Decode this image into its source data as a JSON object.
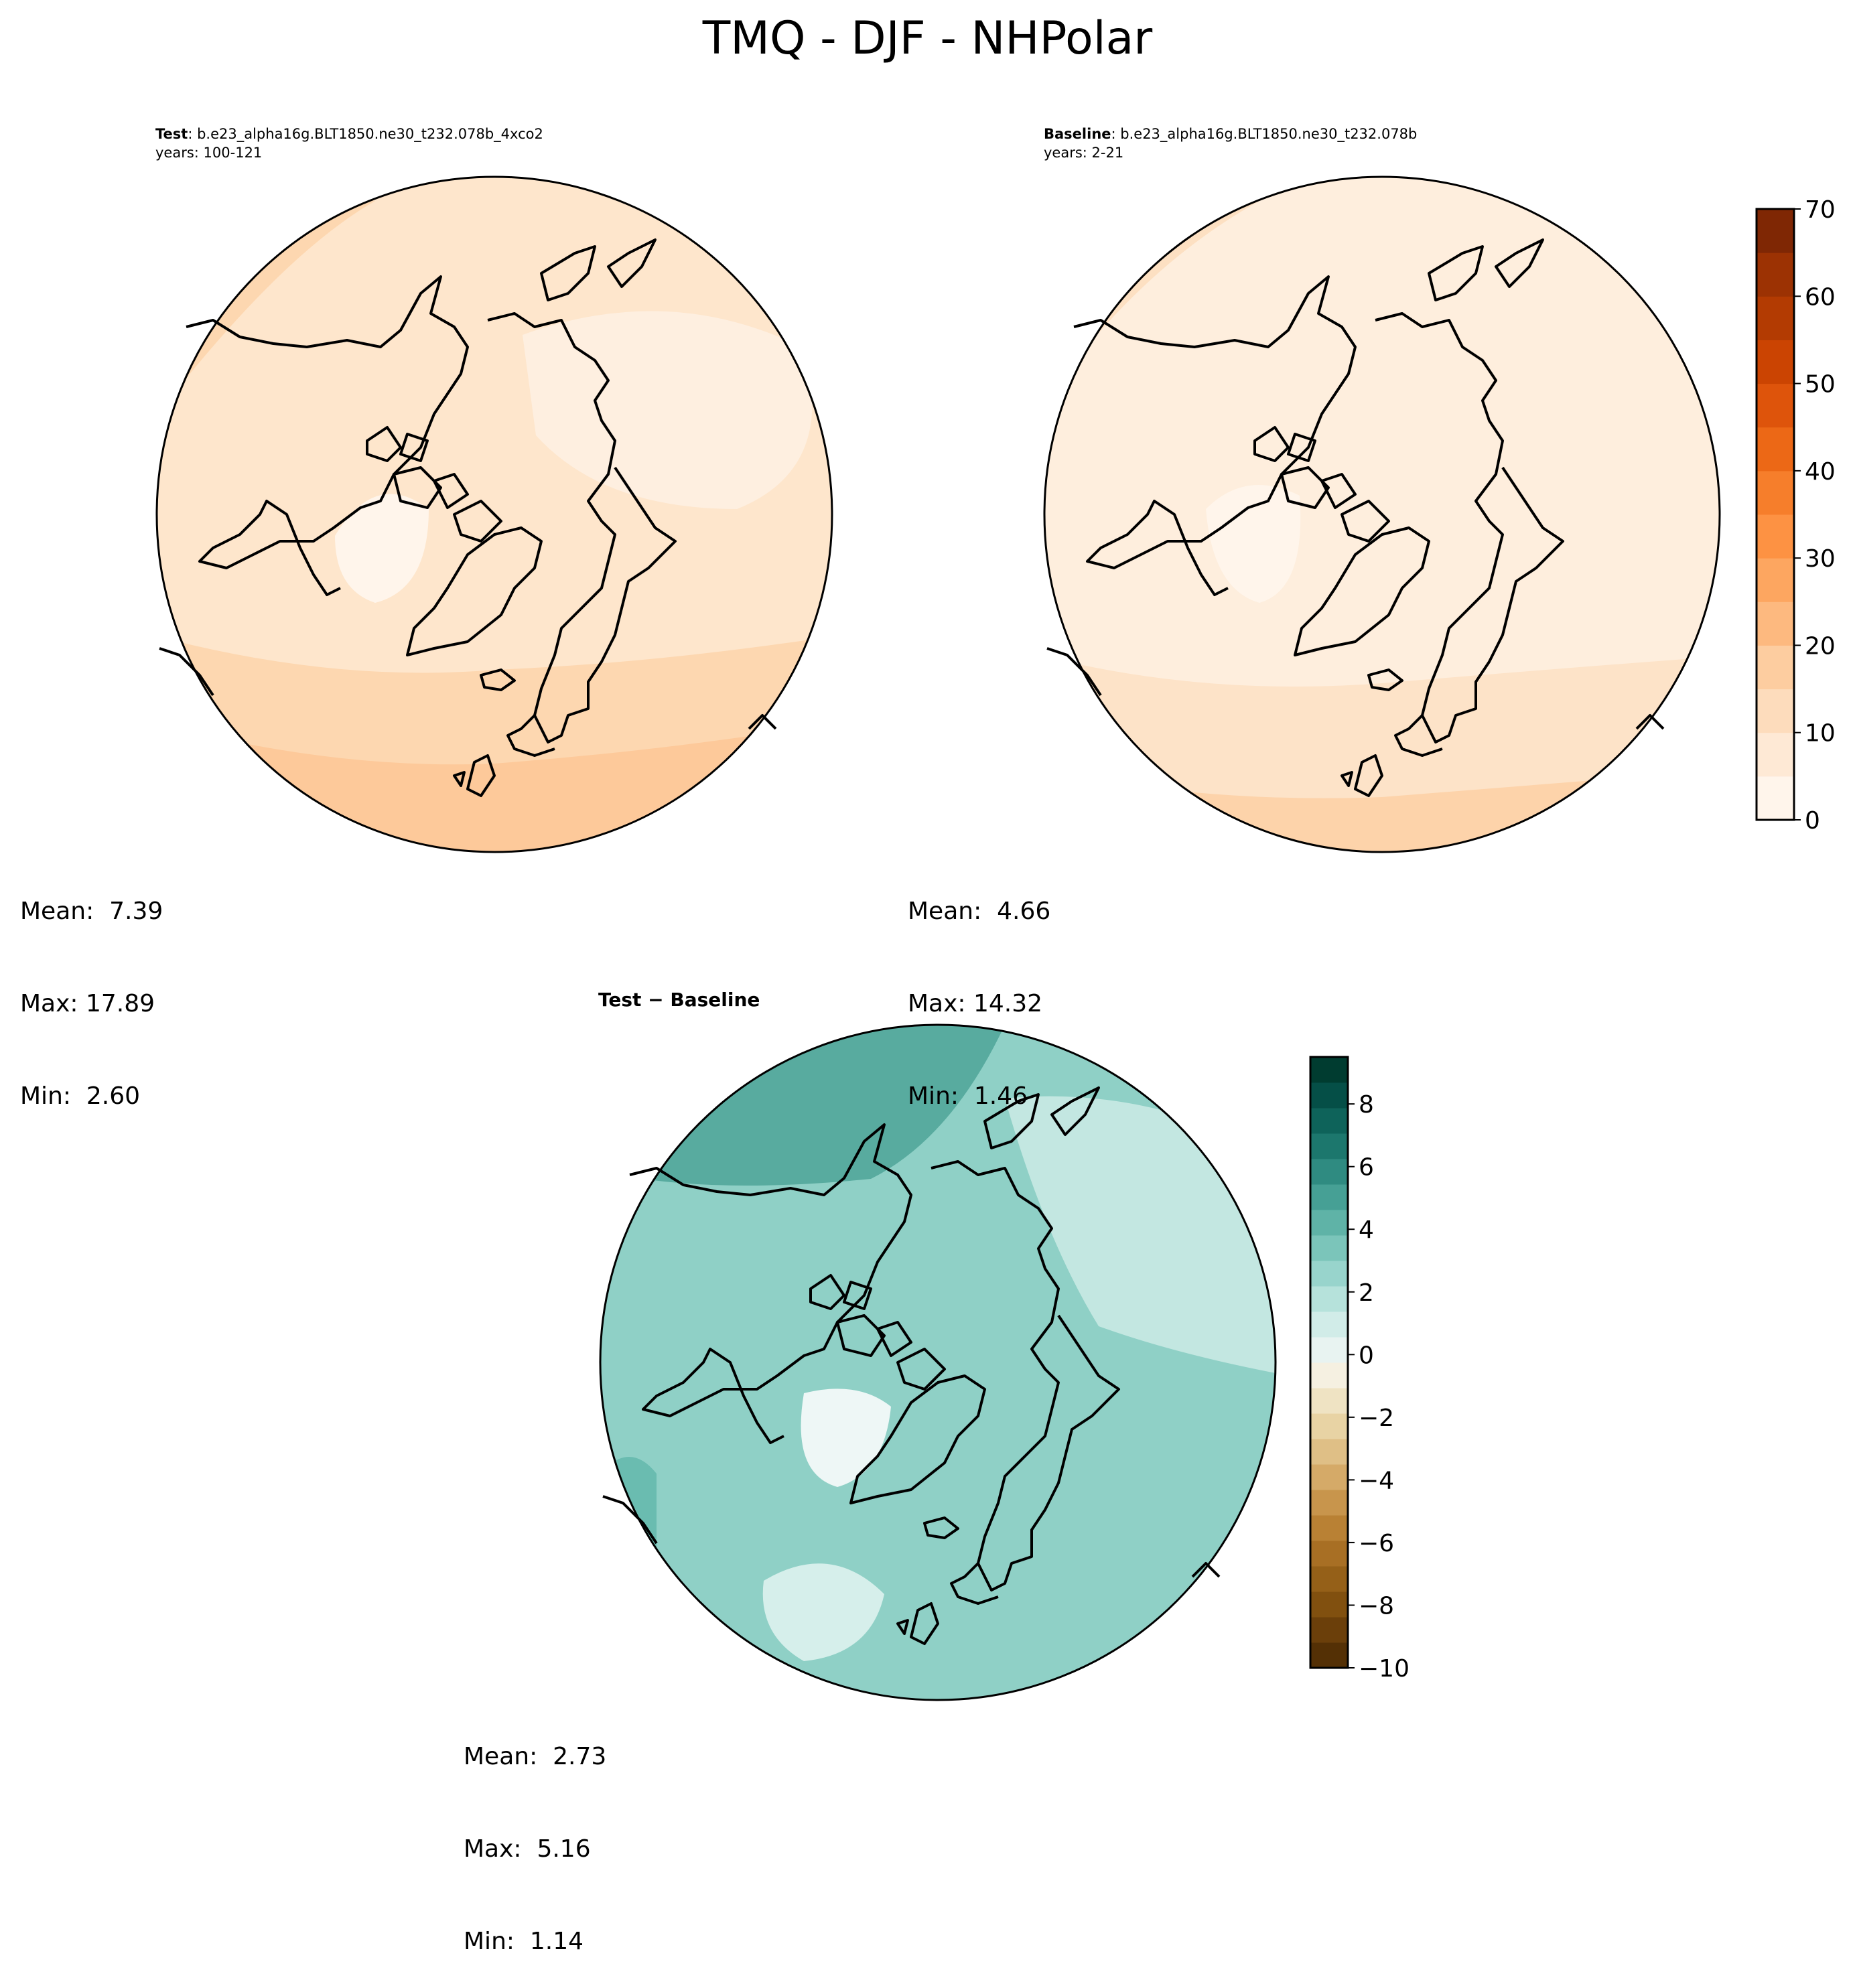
{
  "title": "TMQ - DJF - NHPolar",
  "panels": {
    "test": {
      "label_bold": "Test",
      "label_rest": ": b.e23_alpha16g.BLT1850.ne30_t232.078b_4xco2",
      "years": "years: 100-121",
      "stats": {
        "mean": "Mean:  7.39",
        "max": "Max: 17.89",
        "min": "Min:  2.60"
      }
    },
    "baseline": {
      "label_bold": "Baseline",
      "label_rest": ": b.e23_alpha16g.BLT1850.ne30_t232.078b",
      "years": "years: 2-21",
      "stats": {
        "mean": "Mean:  4.66",
        "max": "Max: 14.32",
        "min": "Min:  1.46"
      }
    },
    "diff": {
      "label": "Test − Baseline",
      "stats": {
        "mean": "Mean:  2.73",
        "max": "Max:  5.16",
        "min": "Min:  1.14"
      }
    }
  },
  "chart_data": [
    {
      "type": "heatmap",
      "projection": "north-polar-stereographic",
      "panel": "test",
      "colormap": "Oranges",
      "stats": {
        "mean": 7.39,
        "max": 17.89,
        "min": 2.6
      }
    },
    {
      "type": "heatmap",
      "projection": "north-polar-stereographic",
      "panel": "baseline",
      "colormap": "Oranges",
      "stats": {
        "mean": 4.66,
        "max": 14.32,
        "min": 1.46
      },
      "colorbar": {
        "range": [
          0,
          70
        ],
        "ticks": [
          "0",
          "10",
          "20",
          "30",
          "40",
          "50",
          "60",
          "70"
        ],
        "levels": 14,
        "colors": [
          "#fff5eb",
          "#fee9d5",
          "#fddcbc",
          "#fdcda0",
          "#fdb97f",
          "#fda660",
          "#fd9243",
          "#f67e2b",
          "#ec6816",
          "#de540b",
          "#cb4402",
          "#b33b02",
          "#9c3203",
          "#7f2704"
        ]
      }
    },
    {
      "type": "heatmap",
      "projection": "north-polar-stereographic",
      "panel": "diff",
      "colormap": "BrBG",
      "stats": {
        "mean": 2.73,
        "max": 5.16,
        "min": 1.14
      },
      "colorbar": {
        "range": [
          -10,
          9.5
        ],
        "ticks": [
          "−10",
          "−8",
          "−6",
          "−4",
          "−2",
          "0",
          "2",
          "4",
          "6",
          "8"
        ],
        "colors": [
          "#543005",
          "#6b3f0a",
          "#81500f",
          "#956018",
          "#a86f24",
          "#b98134",
          "#c8954c",
          "#d5aa68",
          "#dfbf86",
          "#e8d3a4",
          "#efe3c3",
          "#f5f0e1",
          "#e8f3f1",
          "#d1ece8",
          "#b6e2db",
          "#98d4cc",
          "#7bc5ba",
          "#5fb3a7",
          "#46a095",
          "#2f8b81",
          "#1c776d",
          "#0e635a",
          "#054f47",
          "#003c30"
        ]
      }
    }
  ]
}
